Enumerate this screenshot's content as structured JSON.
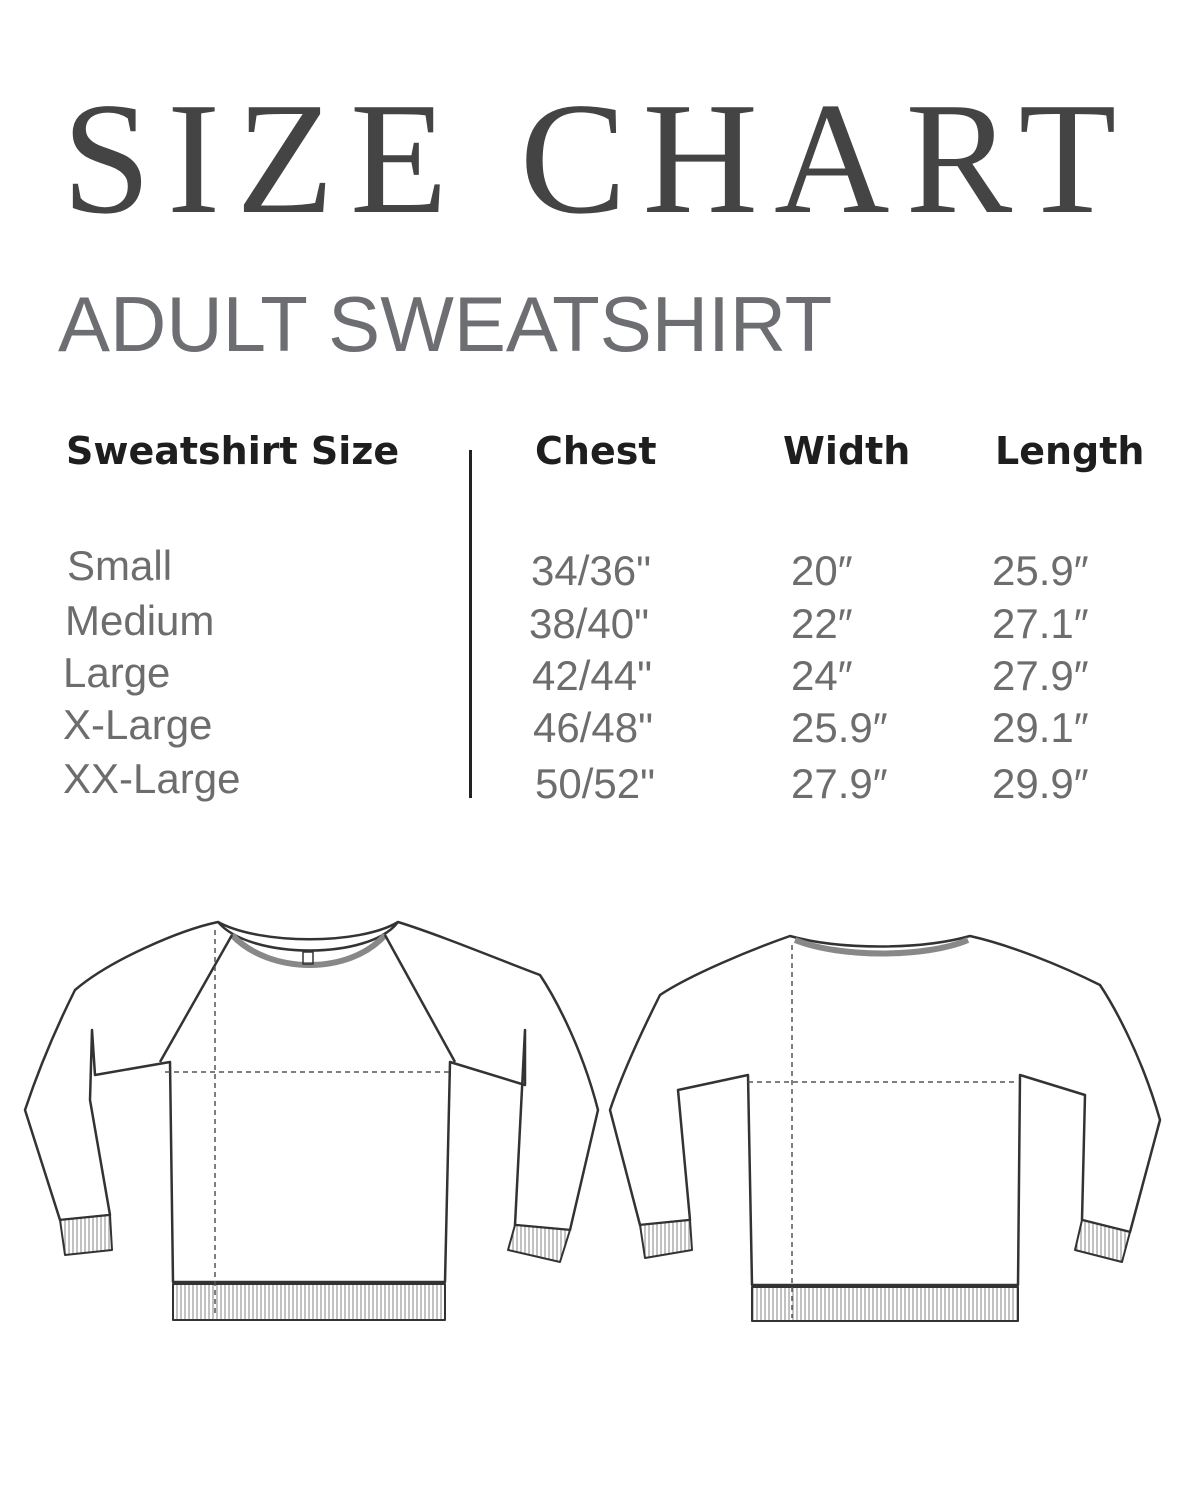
{
  "title": "SIZE CHART",
  "subtitle": "ADULT SWEATSHIRT",
  "table": {
    "headers": [
      "Sweatshirt Size",
      "Chest",
      "Width",
      "Length"
    ],
    "rows": [
      [
        "Small",
        "34/36\"",
        "20″",
        "25.9″"
      ],
      [
        "Medium",
        "38/40\"",
        "22″",
        "27.1″"
      ],
      [
        "Large",
        "42/44\"",
        "24″",
        "27.9″"
      ],
      [
        "X-Large",
        "46/48\"",
        "25.9″",
        "29.1″"
      ],
      [
        "XX-Large",
        "50/52\"",
        "27.9″",
        "29.9″"
      ]
    ]
  },
  "illustrations": [
    "sweatshirt-front",
    "sweatshirt-back"
  ]
}
